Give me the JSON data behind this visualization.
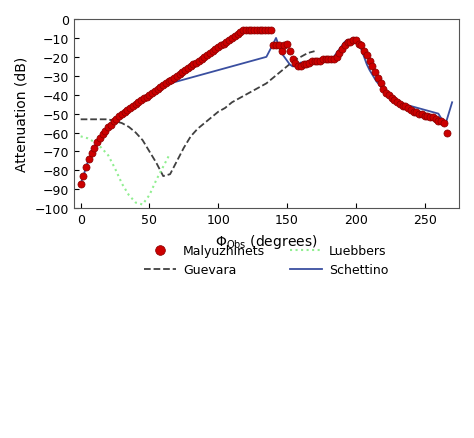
{
  "title": "",
  "xlabel": "$\\Phi_{\\mathrm{Obs}}$ (degrees)",
  "ylabel": "Attenuation (dB)",
  "xlim": [
    -5,
    275
  ],
  "ylim": [
    -100,
    0
  ],
  "xticks": [
    0,
    50,
    100,
    150,
    200,
    250
  ],
  "yticks": [
    0,
    -10,
    -20,
    -30,
    -40,
    -50,
    -60,
    -70,
    -80,
    -90,
    -100
  ],
  "bg_color": "#ffffff",
  "schettino_color": "#3a4fa0",
  "guevara_color": "#404040",
  "luebbers_color": "#90ee90",
  "malyuzhinets_face": "#cc0000",
  "malyuzhinets_edge": "#880000",
  "schettino_x": [
    0,
    2,
    4,
    6,
    8,
    10,
    12,
    14,
    16,
    18,
    20,
    22,
    24,
    26,
    28,
    30,
    32,
    34,
    36,
    38,
    40,
    42,
    44,
    46,
    48,
    50,
    52,
    54,
    56,
    58,
    60,
    65,
    70,
    75,
    80,
    85,
    90,
    95,
    100,
    105,
    110,
    115,
    120,
    125,
    130,
    135,
    140,
    142,
    144,
    146,
    148,
    150,
    152,
    154,
    156,
    158,
    160,
    162,
    164,
    166,
    168,
    170,
    172,
    174,
    176,
    178,
    180,
    182,
    184,
    186,
    188,
    190,
    192,
    194,
    196,
    198,
    200,
    202,
    204,
    206,
    208,
    210,
    215,
    220,
    225,
    230,
    235,
    240,
    245,
    250,
    255,
    260,
    265,
    270
  ],
  "schettino_y": [
    -87,
    -83,
    -78,
    -74,
    -71,
    -68,
    -65,
    -63,
    -61,
    -59,
    -57,
    -56,
    -54,
    -53,
    -51,
    -50,
    -49,
    -48,
    -47,
    -46,
    -45,
    -44,
    -43,
    -42,
    -41,
    -40,
    -39,
    -38,
    -37,
    -36,
    -35,
    -34,
    -33,
    -32,
    -31,
    -30,
    -29,
    -28,
    -27,
    -26,
    -25,
    -24,
    -23,
    -22,
    -21,
    -20,
    -13,
    -10,
    -14,
    -18,
    -20,
    -22,
    -24,
    -25,
    -25,
    -24,
    -23,
    -23,
    -23,
    -22,
    -22,
    -22,
    -22,
    -21,
    -21,
    -21,
    -21,
    -21,
    -20,
    -18,
    -16,
    -14,
    -12,
    -11,
    -11,
    -10,
    -11,
    -13,
    -16,
    -20,
    -24,
    -27,
    -33,
    -37,
    -41,
    -43,
    -45,
    -46,
    -47,
    -48,
    -49,
    -50,
    -56,
    -44
  ],
  "guevara_x": [
    0,
    5,
    10,
    15,
    20,
    25,
    30,
    35,
    40,
    45,
    50,
    55,
    60,
    65,
    70,
    75,
    80,
    85,
    90,
    95,
    100,
    105,
    110,
    115,
    120,
    125,
    130,
    135,
    140,
    145,
    150,
    155,
    160,
    165,
    170
  ],
  "guevara_y": [
    -53,
    -53,
    -53,
    -53,
    -53,
    -54,
    -55,
    -57,
    -60,
    -64,
    -70,
    -76,
    -83,
    -82,
    -75,
    -68,
    -62,
    -58,
    -55,
    -52,
    -49,
    -47,
    -44,
    -42,
    -40,
    -38,
    -36,
    -34,
    -31,
    -28,
    -25,
    -22,
    -20,
    -18,
    -17
  ],
  "luebbers_x": [
    0,
    5,
    10,
    15,
    20,
    25,
    30,
    35,
    40,
    45,
    50,
    55,
    60,
    65
  ],
  "luebbers_y": [
    -62,
    -63,
    -65,
    -68,
    -72,
    -79,
    -87,
    -93,
    -97,
    -98,
    -93,
    -85,
    -78,
    -71
  ],
  "malyuzhinets_x": [
    0,
    2,
    4,
    6,
    8,
    10,
    12,
    14,
    16,
    18,
    20,
    22,
    24,
    26,
    28,
    30,
    32,
    34,
    36,
    38,
    40,
    42,
    44,
    46,
    48,
    50,
    52,
    54,
    56,
    58,
    60,
    62,
    64,
    66,
    68,
    70,
    72,
    74,
    76,
    78,
    80,
    82,
    84,
    86,
    88,
    90,
    92,
    94,
    96,
    98,
    100,
    102,
    104,
    106,
    108,
    110,
    112,
    114,
    116,
    118,
    120,
    122,
    124,
    126,
    128,
    130,
    132,
    134,
    136,
    138,
    140,
    142,
    144,
    146,
    148,
    150,
    152,
    154,
    156,
    158,
    160,
    162,
    164,
    166,
    168,
    170,
    172,
    174,
    176,
    178,
    180,
    182,
    184,
    186,
    188,
    190,
    192,
    194,
    196,
    198,
    200,
    202,
    204,
    206,
    208,
    210,
    212,
    214,
    216,
    218,
    220,
    222,
    224,
    226,
    228,
    230,
    232,
    234,
    236,
    238,
    240,
    242,
    244,
    246,
    248,
    250,
    252,
    254,
    256,
    258,
    260,
    262,
    264,
    266
  ],
  "malyuzhinets_y": [
    -87,
    -83,
    -78,
    -74,
    -71,
    -68,
    -65,
    -63,
    -61,
    -59,
    -57,
    -56,
    -54,
    -53,
    -51,
    -50,
    -49,
    -48,
    -47,
    -46,
    -45,
    -44,
    -43,
    -42,
    -41,
    -40,
    -39,
    -38,
    -37,
    -36,
    -35,
    -34,
    -33,
    -32,
    -31,
    -30,
    -29,
    -28,
    -27,
    -26,
    -25,
    -24,
    -23,
    -22,
    -21,
    -20,
    -19,
    -18,
    -17,
    -16,
    -15,
    -14,
    -13,
    -12,
    -11,
    -10,
    -9,
    -8,
    -7,
    -6,
    -6,
    -6,
    -6,
    -6,
    -6,
    -6,
    -6,
    -6,
    -6,
    -6,
    -14,
    -14,
    -14,
    -17,
    -14,
    -13,
    -17,
    -21,
    -23,
    -25,
    -25,
    -24,
    -24,
    -23,
    -22,
    -22,
    -22,
    -22,
    -21,
    -21,
    -21,
    -21,
    -21,
    -20,
    -18,
    -16,
    -14,
    -12,
    -12,
    -11,
    -11,
    -13,
    -14,
    -17,
    -19,
    -22,
    -25,
    -28,
    -31,
    -34,
    -37,
    -39,
    -40,
    -42,
    -43,
    -44,
    -45,
    -46,
    -46,
    -47,
    -48,
    -49,
    -49,
    -50,
    -50,
    -51,
    -51,
    -52,
    -52,
    -53,
    -54,
    -54,
    -55,
    -60
  ]
}
